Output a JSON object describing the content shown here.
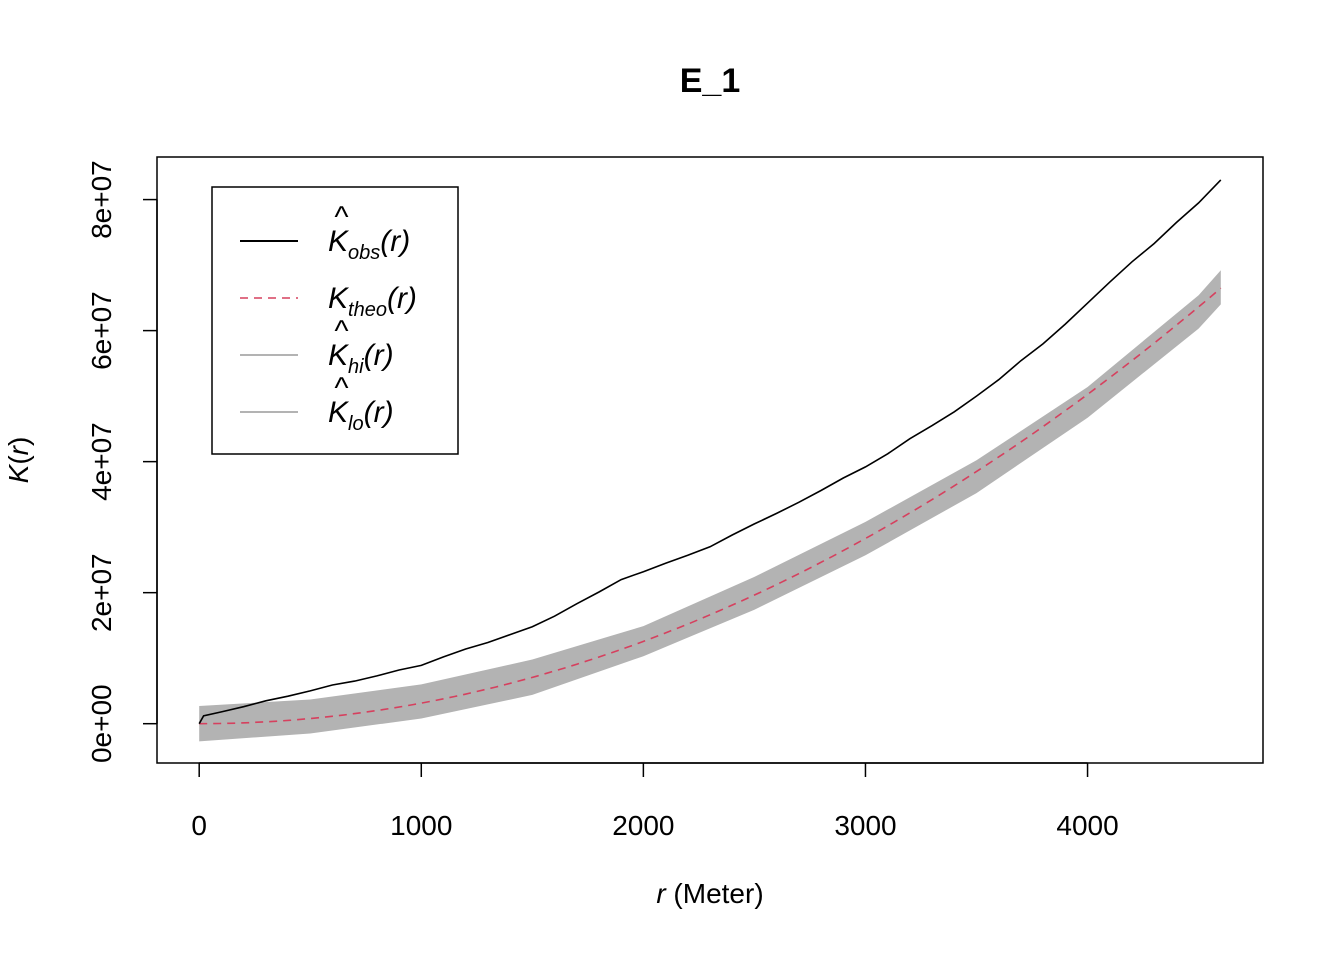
{
  "chart_data": {
    "type": "line",
    "title": "E_1",
    "xlabel_var": "r",
    "xlabel_unit": " (Meter)",
    "ylabel_main": "K",
    "ylabel_paren_open": "(",
    "ylabel_var": "r",
    "ylabel_paren_close": ")",
    "xlim": [
      -190,
      4790
    ],
    "ylim": [
      -6000000,
      86500000
    ],
    "x_ticks": [
      0,
      1000,
      2000,
      3000,
      4000
    ],
    "x_tick_labels": [
      "0",
      "1000",
      "2000",
      "3000",
      "4000"
    ],
    "y_ticks": [
      0,
      20000000,
      40000000,
      60000000,
      80000000
    ],
    "y_tick_labels": [
      "0e+00",
      "2e+07",
      "4e+07",
      "6e+07",
      "8e+07"
    ],
    "legend_position": "top-left",
    "series": [
      {
        "name": "K_obs(r)",
        "legend_main": "K",
        "legend_sub": "obs",
        "legend_hat": true,
        "color": "#000000",
        "style": "solid",
        "x": [
          0,
          20,
          100,
          200,
          300,
          400,
          500,
          600,
          700,
          800,
          900,
          1000,
          1100,
          1200,
          1300,
          1400,
          1500,
          1600,
          1700,
          1800,
          1900,
          2000,
          2100,
          2200,
          2300,
          2400,
          2500,
          2600,
          2700,
          2800,
          2900,
          3000,
          3100,
          3200,
          3300,
          3400,
          3500,
          3600,
          3700,
          3800,
          3900,
          4000,
          4100,
          4200,
          4300,
          4400,
          4500,
          4600
        ],
        "y": [
          0,
          1200000,
          1800000,
          2600000,
          3500000,
          4200000,
          5000000,
          5900000,
          6500000,
          7300000,
          8200000,
          8900000,
          10200000,
          11400000,
          12400000,
          13600000,
          14800000,
          16400000,
          18300000,
          20100000,
          22000000,
          23200000,
          24500000,
          25700000,
          27000000,
          28800000,
          30500000,
          32100000,
          33800000,
          35600000,
          37500000,
          39200000,
          41200000,
          43500000,
          45500000,
          47600000,
          50000000,
          52500000,
          55400000,
          58000000,
          61000000,
          64200000,
          67400000,
          70500000,
          73300000,
          76500000,
          79500000,
          83000000
        ]
      },
      {
        "name": "K_theo(r)",
        "legend_main": "K",
        "legend_sub": "theo",
        "legend_hat": false,
        "color": "#d6405e",
        "style": "dashed",
        "formula": "pi*r^2",
        "x_range": [
          0,
          4600
        ]
      },
      {
        "name": "K_hi(r)",
        "legend_main": "K",
        "legend_sub": "hi",
        "legend_hat": true,
        "color": "#b3b3b3",
        "style": "solid",
        "x": [
          0,
          500,
          1000,
          1500,
          2000,
          2500,
          3000,
          3500,
          4000,
          4500,
          4600
        ],
        "y": [
          2700000,
          3700000,
          6000000,
          9800000,
          14900000,
          22400000,
          30800000,
          40200000,
          51400000,
          65400000,
          69200000
        ]
      },
      {
        "name": "K_lo(r)",
        "legend_main": "K",
        "legend_sub": "lo",
        "legend_hat": true,
        "color": "#b3b3b3",
        "style": "solid",
        "x": [
          0,
          500,
          1000,
          1500,
          2000,
          2500,
          3000,
          3500,
          4000,
          4500,
          4600
        ],
        "y": [
          -2700000,
          -1500000,
          800000,
          4400000,
          10300000,
          17400000,
          25700000,
          35200000,
          46700000,
          60300000,
          64000000
        ]
      }
    ]
  }
}
